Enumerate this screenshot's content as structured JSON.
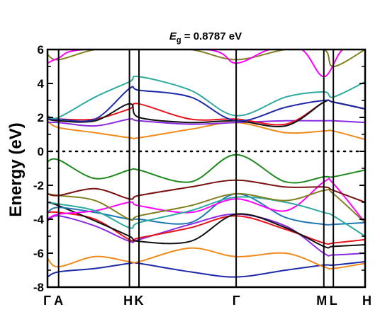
{
  "chart_data": {
    "type": "line",
    "title_prefix": "E",
    "title_subscript": "g",
    "title_value": " = 0.8787 eV",
    "ylabel": "Energy (eV)",
    "xlabel": "",
    "ylim": [
      -8,
      6
    ],
    "y_ticks": [
      -8,
      -6,
      -4,
      -2,
      0,
      2,
      4,
      6
    ],
    "y_tick_labels": [
      "-8",
      "-6",
      "-4",
      "-2",
      "0",
      "2",
      "4",
      "6"
    ],
    "fermi_level": 0,
    "grid": false,
    "legend": "none",
    "k_points": [
      {
        "label": "Γ",
        "x": 0.0
      },
      {
        "label": "A",
        "x": 0.035
      },
      {
        "label": "H",
        "x": 0.258
      },
      {
        "label": "K",
        "x": 0.288
      },
      {
        "label": "Γ",
        "x": 0.594
      },
      {
        "label": "M",
        "x": 0.87
      },
      {
        "label": "L",
        "x": 0.9
      },
      {
        "label": "H",
        "x": 1.0
      }
    ],
    "series": [
      {
        "color": "#1f2aa8",
        "points": [
          [
            0,
            -7.4
          ],
          [
            0.035,
            -7.1
          ],
          [
            0.15,
            -6.9
          ],
          [
            0.258,
            -6.6
          ],
          [
            0.288,
            -6.6
          ],
          [
            0.45,
            -7.1
          ],
          [
            0.594,
            -7.4
          ],
          [
            0.75,
            -7.0
          ],
          [
            0.87,
            -6.7
          ],
          [
            0.9,
            -6.7
          ],
          [
            1.0,
            -6.5
          ]
        ]
      },
      {
        "color": "#f08a1a",
        "points": [
          [
            0,
            -6.3
          ],
          [
            0.035,
            -6.8
          ],
          [
            0.15,
            -6.2
          ],
          [
            0.258,
            -6.5
          ],
          [
            0.288,
            -6.5
          ],
          [
            0.45,
            -5.7
          ],
          [
            0.594,
            -6.2
          ],
          [
            0.75,
            -6.0
          ],
          [
            0.87,
            -6.8
          ],
          [
            0.9,
            -6.9
          ],
          [
            1.0,
            -6.6
          ]
        ]
      },
      {
        "color": "#8a2be2",
        "points": [
          [
            0,
            -4.1
          ],
          [
            0.035,
            -3.8
          ],
          [
            0.15,
            -4.4
          ],
          [
            0.258,
            -5.3
          ],
          [
            0.288,
            -5.2
          ],
          [
            0.45,
            -4.3
          ],
          [
            0.594,
            -3.7
          ],
          [
            0.75,
            -4.4
          ],
          [
            0.87,
            -6.0
          ],
          [
            0.9,
            -6.1
          ],
          [
            1.0,
            -6.0
          ]
        ]
      },
      {
        "color": "#e8141e",
        "points": [
          [
            0,
            -3.6
          ],
          [
            0.035,
            -3.6
          ],
          [
            0.15,
            -4.0
          ],
          [
            0.258,
            -5.2
          ],
          [
            0.288,
            -5.1
          ],
          [
            0.45,
            -4.5
          ],
          [
            0.594,
            -3.8
          ],
          [
            0.75,
            -4.6
          ],
          [
            0.87,
            -5.4
          ],
          [
            0.9,
            -5.4
          ],
          [
            1.0,
            -5.2
          ]
        ]
      },
      {
        "color": "#111111",
        "points": [
          [
            0,
            -3.0
          ],
          [
            0.035,
            -3.2
          ],
          [
            0.15,
            -4.1
          ],
          [
            0.258,
            -5.0
          ],
          [
            0.288,
            -5.3
          ],
          [
            0.45,
            -5.3
          ],
          [
            0.594,
            -3.7
          ],
          [
            0.75,
            -4.5
          ],
          [
            0.87,
            -5.6
          ],
          [
            0.9,
            -5.6
          ],
          [
            1.0,
            -5.5
          ]
        ]
      },
      {
        "color": "#1f78b4",
        "points": [
          [
            0,
            -3.6
          ],
          [
            0.035,
            -3.3
          ],
          [
            0.15,
            -3.6
          ],
          [
            0.258,
            -4.0
          ],
          [
            0.288,
            -4.0
          ],
          [
            0.45,
            -4.2
          ],
          [
            0.594,
            -2.5
          ],
          [
            0.75,
            -3.9
          ],
          [
            0.87,
            -4.3
          ],
          [
            0.9,
            -4.3
          ],
          [
            1.0,
            -4.2
          ]
        ]
      },
      {
        "color": "#ff00ff",
        "points": [
          [
            0,
            -4.0
          ],
          [
            0.035,
            -3.7
          ],
          [
            0.15,
            -3.5
          ],
          [
            0.258,
            -3.0
          ],
          [
            0.288,
            -3.2
          ],
          [
            0.45,
            -3.6
          ],
          [
            0.594,
            -2.8
          ],
          [
            0.75,
            -3.5
          ],
          [
            0.87,
            -1.8
          ],
          [
            0.9,
            -1.9
          ],
          [
            1.0,
            -4.2
          ]
        ]
      },
      {
        "color": "#2eaaa0",
        "points": [
          [
            0,
            -3.0
          ],
          [
            0.035,
            -3.1
          ],
          [
            0.15,
            -3.5
          ],
          [
            0.258,
            -4.5
          ],
          [
            0.288,
            -4.2
          ],
          [
            0.45,
            -3.5
          ],
          [
            0.594,
            -2.7
          ],
          [
            0.75,
            -3.0
          ],
          [
            0.87,
            -3.6
          ],
          [
            0.9,
            -3.8
          ],
          [
            1.0,
            -5.0
          ]
        ]
      },
      {
        "color": "#808020",
        "points": [
          [
            0,
            -2.5
          ],
          [
            0.035,
            -2.6
          ],
          [
            0.15,
            -2.9
          ],
          [
            0.258,
            -4.0
          ],
          [
            0.288,
            -3.8
          ],
          [
            0.45,
            -3.2
          ],
          [
            0.594,
            -2.5
          ],
          [
            0.75,
            -2.9
          ],
          [
            0.87,
            -2.3
          ],
          [
            0.9,
            -2.5
          ],
          [
            1.0,
            -4.2
          ]
        ]
      },
      {
        "color": "#7a1212",
        "points": [
          [
            0,
            -2.5
          ],
          [
            0.035,
            -2.6
          ],
          [
            0.15,
            -2.2
          ],
          [
            0.258,
            -2.8
          ],
          [
            0.288,
            -2.6
          ],
          [
            0.45,
            -2.1
          ],
          [
            0.594,
            -1.7
          ],
          [
            0.75,
            -2.1
          ],
          [
            0.87,
            -2.1
          ],
          [
            0.9,
            -2.3
          ],
          [
            1.0,
            -3.0
          ]
        ]
      },
      {
        "color": "#1e8a1e",
        "points": [
          [
            0,
            -0.6
          ],
          [
            0.035,
            -0.5
          ],
          [
            0.15,
            -1.6
          ],
          [
            0.258,
            -1.1
          ],
          [
            0.288,
            -1.1
          ],
          [
            0.45,
            -1.8
          ],
          [
            0.594,
            -0.2
          ],
          [
            0.75,
            -1.8
          ],
          [
            0.87,
            -1.5
          ],
          [
            0.9,
            -1.5
          ],
          [
            1.0,
            -1.1
          ]
        ]
      },
      {
        "color": "#f08a1a",
        "points": [
          [
            0,
            1.8
          ],
          [
            0.035,
            1.4
          ],
          [
            0.15,
            1.1
          ],
          [
            0.258,
            0.8
          ],
          [
            0.288,
            0.8
          ],
          [
            0.45,
            1.3
          ],
          [
            0.594,
            1.7
          ],
          [
            0.75,
            1.1
          ],
          [
            0.87,
            1.2
          ],
          [
            0.9,
            1.2
          ],
          [
            1.0,
            0.7
          ]
        ]
      },
      {
        "color": "#8a2be2",
        "points": [
          [
            0,
            1.7
          ],
          [
            0.035,
            1.7
          ],
          [
            0.15,
            1.5
          ],
          [
            0.258,
            1.9
          ],
          [
            0.288,
            1.8
          ],
          [
            0.45,
            1.6
          ],
          [
            0.594,
            1.7
          ],
          [
            0.75,
            1.8
          ],
          [
            0.87,
            1.8
          ],
          [
            0.9,
            1.8
          ],
          [
            1.0,
            1.7
          ]
        ]
      },
      {
        "color": "#e8141e",
        "points": [
          [
            0,
            1.9
          ],
          [
            0.035,
            1.9
          ],
          [
            0.15,
            1.9
          ],
          [
            0.258,
            2.5
          ],
          [
            0.288,
            2.8
          ],
          [
            0.45,
            1.9
          ],
          [
            0.594,
            1.9
          ],
          [
            0.75,
            1.6
          ],
          [
            0.87,
            2.9
          ],
          [
            0.9,
            2.9
          ],
          [
            1.0,
            2.5
          ]
        ]
      },
      {
        "color": "#111111",
        "points": [
          [
            0,
            1.9
          ],
          [
            0.035,
            1.8
          ],
          [
            0.15,
            1.8
          ],
          [
            0.258,
            2.8
          ],
          [
            0.288,
            2.0
          ],
          [
            0.45,
            1.7
          ],
          [
            0.594,
            1.8
          ],
          [
            0.75,
            1.5
          ],
          [
            0.87,
            2.9
          ],
          [
            0.9,
            2.9
          ],
          [
            1.0,
            2.5
          ]
        ]
      },
      {
        "color": "#1f2aa8",
        "points": [
          [
            0,
            1.9
          ],
          [
            0.035,
            1.9
          ],
          [
            0.15,
            1.9
          ],
          [
            0.258,
            3.7
          ],
          [
            0.288,
            3.6
          ],
          [
            0.45,
            3.2
          ],
          [
            0.594,
            1.8
          ],
          [
            0.75,
            2.6
          ],
          [
            0.87,
            3.0
          ],
          [
            0.9,
            2.9
          ],
          [
            1.0,
            2.5
          ]
        ]
      },
      {
        "color": "#2eaaa0",
        "points": [
          [
            0,
            2.1
          ],
          [
            0.035,
            2.0
          ],
          [
            0.15,
            3.2
          ],
          [
            0.258,
            4.1
          ],
          [
            0.288,
            4.4
          ],
          [
            0.45,
            3.6
          ],
          [
            0.594,
            2.1
          ],
          [
            0.75,
            3.2
          ],
          [
            0.87,
            3.5
          ],
          [
            0.9,
            3.2
          ],
          [
            1.0,
            4.1
          ]
        ]
      },
      {
        "color": "#808020",
        "points": [
          [
            0,
            5.7
          ],
          [
            0.035,
            5.4
          ],
          [
            0.15,
            6.0
          ],
          [
            0.258,
            6.0
          ],
          [
            0.288,
            6.0
          ],
          [
            0.45,
            6.0
          ],
          [
            0.594,
            5.4
          ],
          [
            0.75,
            6.0
          ],
          [
            0.87,
            6.0
          ],
          [
            0.9,
            5.0
          ],
          [
            1.0,
            6.0
          ]
        ]
      },
      {
        "color": "#ff00ff",
        "points": [
          [
            0,
            5.2
          ],
          [
            0.035,
            5.5
          ],
          [
            0.12,
            6.0
          ],
          [
            0.5,
            6.0
          ],
          [
            0.594,
            5.2
          ],
          [
            0.7,
            6.0
          ],
          [
            0.8,
            6.0
          ],
          [
            0.87,
            4.4
          ],
          [
            0.93,
            6.0
          ],
          [
            1.0,
            6.0
          ]
        ]
      }
    ]
  }
}
